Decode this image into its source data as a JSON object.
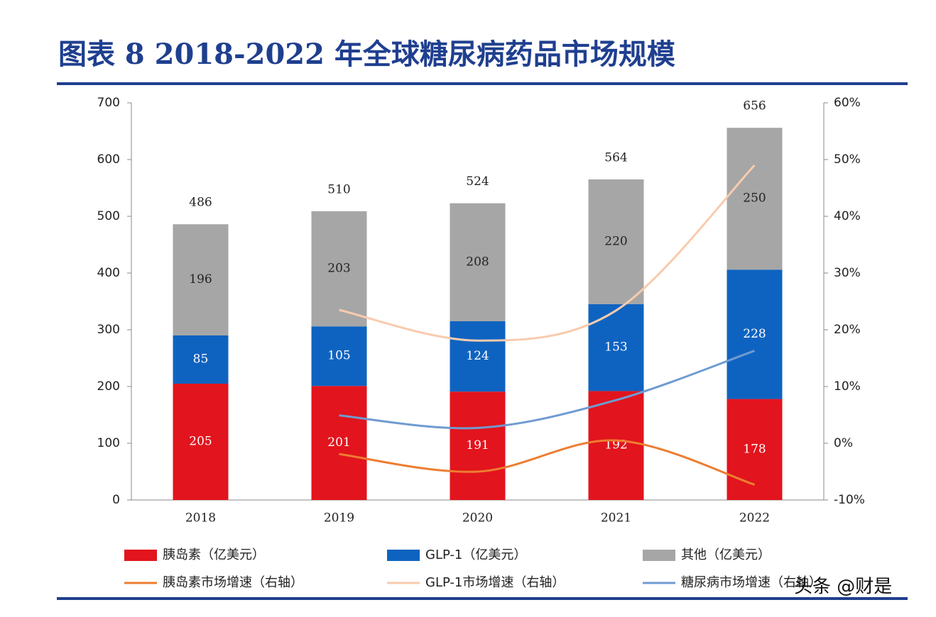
{
  "chart_data": {
    "type": "bar",
    "stacked": true,
    "title": "图表 8  2018-2022 年全球糖尿病药品市场规模",
    "categories": [
      "2018",
      "2019",
      "2020",
      "2021",
      "2022"
    ],
    "series": [
      {
        "name": "胰岛素（亿美元）",
        "type": "bar",
        "color": "#e2141d",
        "label_color": "#ffffff",
        "values": [
          205,
          201,
          191,
          192,
          178
        ]
      },
      {
        "name": "GLP-1（亿美元）",
        "type": "bar",
        "color": "#0f63c0",
        "label_color": "#ffffff",
        "values": [
          85,
          105,
          124,
          153,
          228
        ]
      },
      {
        "name": "其他（亿美元）",
        "type": "bar",
        "color": "#a6a6a6",
        "label_color": "#222222",
        "values": [
          196,
          203,
          208,
          220,
          250
        ]
      },
      {
        "name": "胰岛素市场增速（右轴）",
        "type": "line",
        "axis": "y2",
        "color": "#ed7d31",
        "values": [
          null,
          -1.9,
          -5.0,
          0.5,
          -7.3
        ]
      },
      {
        "name": "GLP-1市场增速（右轴）",
        "type": "line",
        "axis": "y2",
        "color": "#f8cbad",
        "values": [
          null,
          23.5,
          18.1,
          23.4,
          49.0
        ]
      },
      {
        "name": "糖尿病市场增速（右轴）",
        "type": "line",
        "axis": "y2",
        "color": "#6f9bd1",
        "values": [
          null,
          4.9,
          2.7,
          7.6,
          16.3
        ]
      }
    ],
    "totals": [
      486,
      510,
      524,
      564,
      656
    ],
    "ylim": [
      0,
      700
    ],
    "yticks": [
      0,
      100,
      200,
      300,
      400,
      500,
      600,
      700
    ],
    "y2lim": [
      -10,
      60
    ],
    "y2ticks": [
      {
        "value": -10,
        "label": "-10%"
      },
      {
        "value": 0,
        "label": "0%"
      },
      {
        "value": 10,
        "label": "10%"
      },
      {
        "value": 20,
        "label": "20%"
      },
      {
        "value": 30,
        "label": "30%"
      },
      {
        "value": 40,
        "label": "40%"
      },
      {
        "value": 50,
        "label": "50%"
      },
      {
        "value": 60,
        "label": "60%"
      }
    ],
    "grid": false,
    "watermark": "头条 @财是"
  }
}
